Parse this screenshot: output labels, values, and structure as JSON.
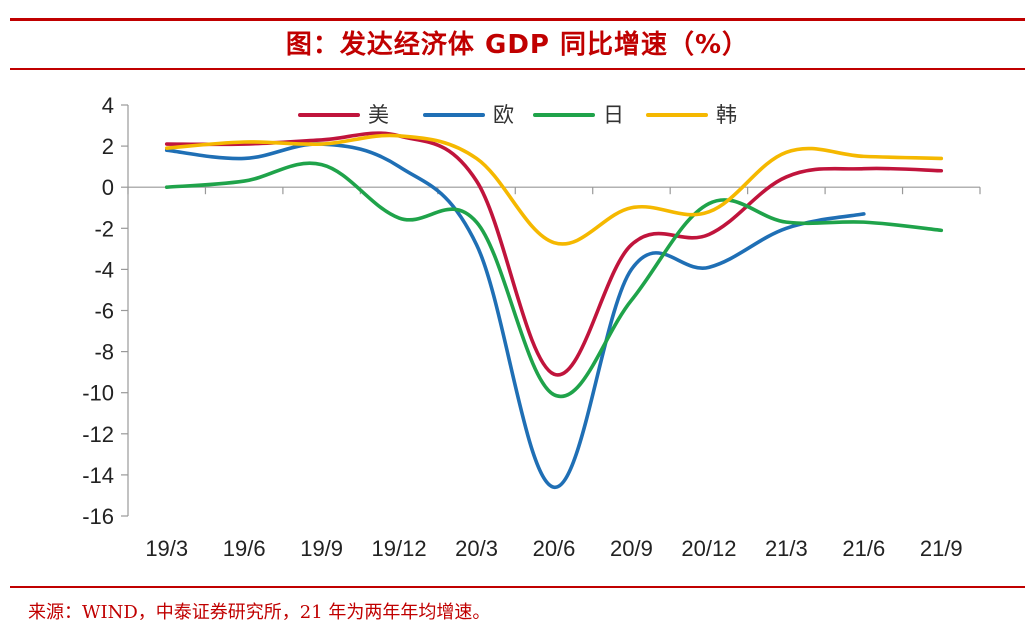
{
  "header": {
    "title": "图：发达经济体 GDP 同比增速（%）"
  },
  "footer": {
    "source": "来源：WIND，中泰证券研究所，21 年为两年年均增速。"
  },
  "chart_data": {
    "type": "line",
    "title": "图：发达经济体 GDP 同比增速（%）",
    "xlabel": "",
    "ylabel": "",
    "ylim": [
      -16,
      4
    ],
    "yticks": [
      4,
      2,
      0,
      -2,
      -4,
      -6,
      -8,
      -10,
      -12,
      -14,
      -16
    ],
    "categories": [
      "19/3",
      "19/6",
      "19/9",
      "19/12",
      "20/3",
      "20/6",
      "20/9",
      "20/12",
      "21/3",
      "21/6",
      "21/9"
    ],
    "legend": "top",
    "series": [
      {
        "name": "美",
        "color": "#c0143c",
        "values": [
          2.1,
          2.1,
          2.3,
          2.5,
          0.3,
          -9.1,
          -2.8,
          -2.3,
          0.5,
          0.9,
          0.8
        ]
      },
      {
        "name": "欧",
        "color": "#1f6fb5",
        "values": [
          1.8,
          1.4,
          2.1,
          1.0,
          -2.8,
          -14.6,
          -4.0,
          -3.9,
          -2.0,
          -1.3,
          null
        ]
      },
      {
        "name": "日",
        "color": "#1fa34a",
        "values": [
          0.0,
          0.3,
          1.1,
          -1.5,
          -1.7,
          -10.1,
          -5.5,
          -0.8,
          -1.7,
          -1.7,
          -2.1
        ]
      },
      {
        "name": "韩",
        "color": "#f5b800",
        "values": [
          1.9,
          2.2,
          2.1,
          2.5,
          1.4,
          -2.7,
          -1.0,
          -1.2,
          1.7,
          1.5,
          1.4
        ]
      }
    ]
  }
}
